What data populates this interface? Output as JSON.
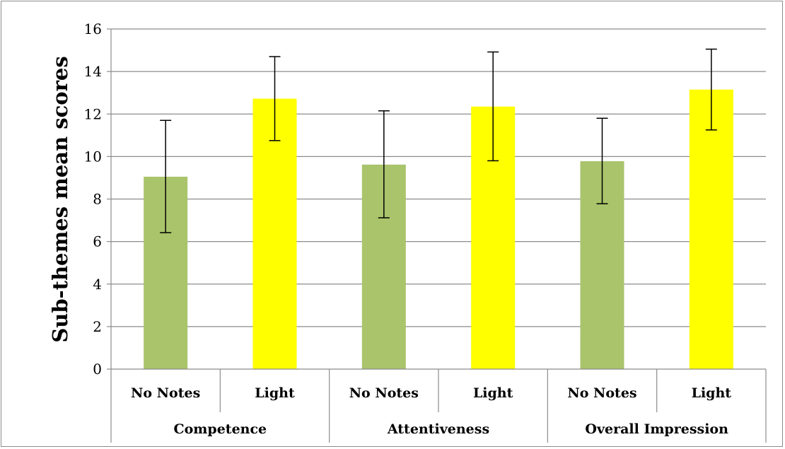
{
  "chart_data": {
    "type": "bar",
    "title": "",
    "xlabel": "",
    "ylabel": "Sub-themes mean scores",
    "ylim": [
      0,
      16
    ],
    "yticks": [
      0,
      2,
      4,
      6,
      8,
      10,
      12,
      14,
      16
    ],
    "grid": true,
    "legend": "none",
    "groups": [
      "Competence",
      "Attentiveness",
      "Overall Impression"
    ],
    "categories": [
      "No Notes",
      "Light",
      "No Notes",
      "Light",
      "No Notes",
      "Light"
    ],
    "values": [
      9.05,
      12.72,
      9.62,
      12.35,
      9.78,
      13.15
    ],
    "error_low": [
      6.42,
      10.75,
      7.12,
      9.8,
      7.78,
      11.25
    ],
    "error_high": [
      11.7,
      14.7,
      12.15,
      14.92,
      11.8,
      15.05
    ],
    "colors": {
      "No Notes": "#a9c46b",
      "Light": "#ffff00"
    }
  }
}
